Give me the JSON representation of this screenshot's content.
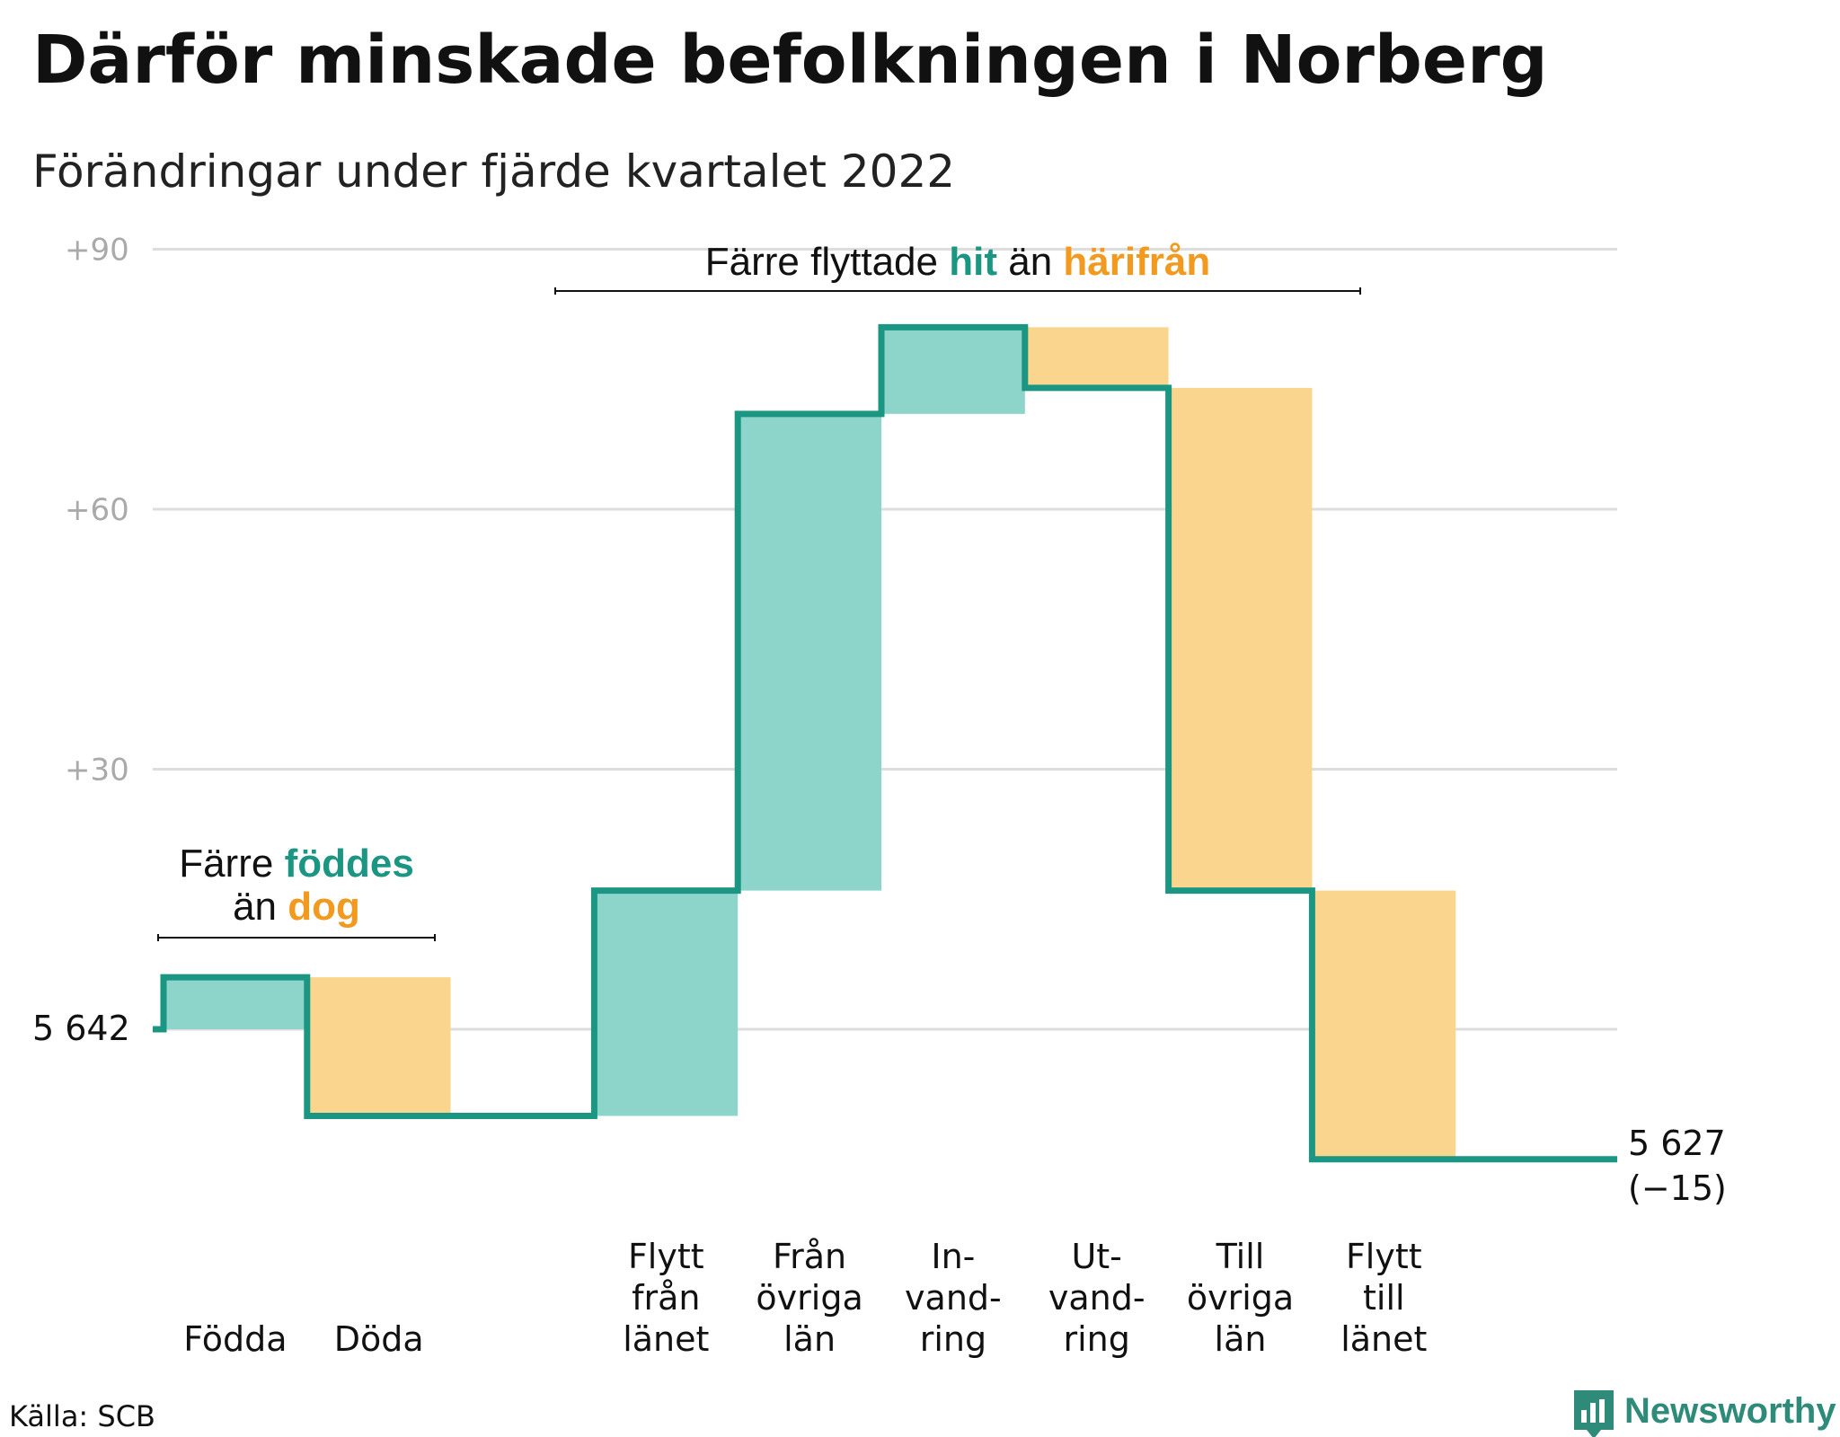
{
  "title": "Därför minskade befolkningen i Norberg",
  "subtitle": "Förändringar under fjärde kvartalet 2022",
  "source": "Källa: SCB",
  "brand": "Newsworthy",
  "colors": {
    "increase_fill": "#8dd4cb",
    "decrease_fill": "#fad58e",
    "line": "#1a9683",
    "increase_text": "#1a9683",
    "decrease_text": "#f29a1f",
    "grid": "#dddddd",
    "tick_text": "#aaaaaa"
  },
  "annotations": {
    "births_deaths": {
      "prefix": "Färre",
      "increase_word": "föddes",
      "middle": "än",
      "decrease_word": "dog"
    },
    "migration": {
      "prefix": "Färre flyttade",
      "increase_word": "hit",
      "middle": "än",
      "decrease_word": "härifrån"
    }
  },
  "chart_data": {
    "type": "waterfall",
    "start_label": "5 642",
    "start_value": 5642,
    "end_label": "5 627",
    "end_change_label": "(−15)",
    "end_value": 5627,
    "y_axis": {
      "ticks": [
        "+30",
        "+60",
        "+90"
      ],
      "tick_values": [
        30,
        60,
        90
      ],
      "range": [
        -20,
        90
      ],
      "unit": "change from start"
    },
    "grid": true,
    "categories": [
      {
        "label": [
          "Födda"
        ],
        "change": 6,
        "direction": "increase"
      },
      {
        "label": [
          "Döda"
        ],
        "change": -16,
        "direction": "decrease"
      },
      {
        "label": [],
        "change": 0,
        "direction": "gap"
      },
      {
        "label": [
          "Flytt",
          "från",
          "länet"
        ],
        "change": 26,
        "direction": "increase"
      },
      {
        "label": [
          "Från",
          "övriga",
          "län"
        ],
        "change": 55,
        "direction": "increase"
      },
      {
        "label": [
          "In-",
          "vand-",
          "ring"
        ],
        "change": 10,
        "direction": "increase"
      },
      {
        "label": [
          "Ut-",
          "vand-",
          "ring"
        ],
        "change": -7,
        "direction": "decrease"
      },
      {
        "label": [
          "Till",
          "övriga",
          "län"
        ],
        "change": -58,
        "direction": "decrease"
      },
      {
        "label": [
          "Flytt",
          "till",
          "länet"
        ],
        "change": -31,
        "direction": "decrease"
      },
      {
        "label": [],
        "change": 0,
        "direction": "gap"
      }
    ]
  }
}
